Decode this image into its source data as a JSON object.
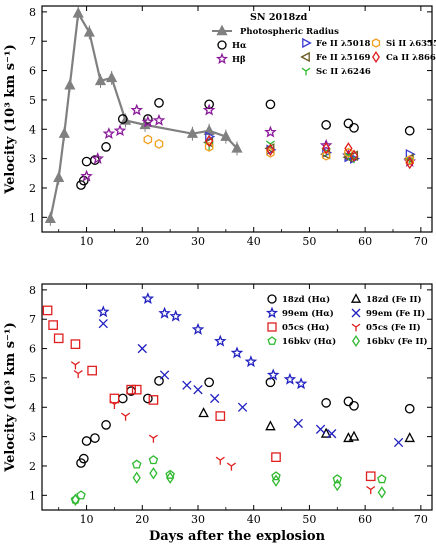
{
  "chart_data": [
    {
      "type": "scatter",
      "title": "SN 2018zd",
      "xlabel": "",
      "ylabel": "Velocity (10³ km s⁻¹)",
      "xlim": [
        2,
        72
      ],
      "ylim": [
        0.5,
        8.2
      ],
      "xticks": [
        "10",
        "20",
        "30",
        "40",
        "50",
        "60",
        "70"
      ],
      "yticks": [
        "1",
        "2",
        "3",
        "4",
        "5",
        "6",
        "7",
        "8"
      ],
      "legend_position": "top-right",
      "series": [
        {
          "name": "Photospheric Radius",
          "marker": "triangle-up",
          "color": "#808080",
          "line": true,
          "points": [
            [
              3.5,
              0.95
            ],
            [
              5,
              2.35
            ],
            [
              6,
              3.85
            ],
            [
              7,
              5.5
            ],
            [
              8.5,
              7.95
            ],
            [
              10.5,
              7.3
            ],
            [
              12.5,
              5.65
            ],
            [
              14.5,
              5.75
            ],
            [
              17,
              4.3
            ],
            [
              20.5,
              4.15
            ],
            [
              29,
              3.85
            ],
            [
              32,
              3.95
            ],
            [
              35,
              3.75
            ],
            [
              37,
              3.35
            ]
          ]
        },
        {
          "name": "Hα",
          "marker": "circle",
          "color": "#000000",
          "points": [
            [
              9,
              2.1
            ],
            [
              9.5,
              2.25
            ],
            [
              10,
              2.9
            ],
            [
              11.5,
              2.95
            ],
            [
              13.5,
              3.4
            ],
            [
              16.5,
              4.35
            ],
            [
              21,
              4.35
            ],
            [
              23,
              4.9
            ],
            [
              32,
              4.85
            ],
            [
              43,
              4.85
            ],
            [
              53,
              4.15
            ],
            [
              57,
              4.2
            ],
            [
              58,
              4.05
            ],
            [
              68,
              3.95
            ]
          ]
        },
        {
          "name": "Hβ",
          "marker": "star",
          "color": "#8b1a9b",
          "points": [
            [
              10,
              2.4
            ],
            [
              12,
              3.0
            ],
            [
              14,
              3.85
            ],
            [
              16,
              3.95
            ],
            [
              19,
              4.65
            ],
            [
              21,
              4.25
            ],
            [
              23,
              4.3
            ],
            [
              32,
              4.65
            ],
            [
              43,
              3.9
            ],
            [
              53,
              3.45
            ],
            [
              57,
              3.1
            ],
            [
              68,
              2.9
            ]
          ]
        },
        {
          "name": "Fe II λ5018",
          "marker": "triangle-right",
          "color": "#3b3bd0",
          "points": [
            [
              32,
              3.75
            ],
            [
              43,
              3.3
            ],
            [
              53,
              3.2
            ],
            [
              57,
              3.05
            ],
            [
              58,
              3.0
            ],
            [
              68,
              3.15
            ]
          ]
        },
        {
          "name": "Fe II λ5169",
          "marker": "triangle-left",
          "color": "#6b5a1f",
          "points": [
            [
              32,
              3.55
            ],
            [
              43,
              3.35
            ],
            [
              53,
              3.15
            ],
            [
              57,
              3.05
            ],
            [
              58,
              3.1
            ],
            [
              68,
              3.0
            ]
          ]
        },
        {
          "name": "Sc II λ6246",
          "marker": "tri",
          "color": "#2fb92f",
          "points": [
            [
              32,
              3.45
            ],
            [
              43,
              3.5
            ],
            [
              53,
              3.25
            ],
            [
              57,
              3.1
            ],
            [
              58,
              3.0
            ],
            [
              68,
              2.95
            ]
          ]
        },
        {
          "name": "Si II λ6355",
          "marker": "hexagon",
          "color": "#f0a020",
          "points": [
            [
              21,
              3.65
            ],
            [
              23,
              3.5
            ],
            [
              32,
              3.4
            ],
            [
              43,
              3.2
            ],
            [
              53,
              3.1
            ],
            [
              57,
              3.2
            ],
            [
              68,
              2.95
            ]
          ]
        },
        {
          "name": "Ca II λ8662",
          "marker": "diamond",
          "color": "#e01818",
          "points": [
            [
              32,
              3.6
            ],
            [
              43,
              3.3
            ],
            [
              53,
              3.35
            ],
            [
              57,
              3.35
            ],
            [
              58,
              3.1
            ],
            [
              68,
              2.85
            ]
          ]
        }
      ]
    },
    {
      "type": "scatter",
      "title": "",
      "xlabel": "Days after the explosion",
      "ylabel": "Velocity (10³ km s⁻¹)",
      "xlim": [
        2,
        72
      ],
      "ylim": [
        0.5,
        8.2
      ],
      "xticks": [
        "10",
        "20",
        "30",
        "40",
        "50",
        "60",
        "70"
      ],
      "yticks": [
        "1",
        "2",
        "3",
        "4",
        "5",
        "6",
        "7",
        "8"
      ],
      "legend_position": "top-right",
      "series": [
        {
          "name": "18zd (Hα)",
          "marker": "circle",
          "color": "#000000",
          "points": [
            [
              9,
              2.1
            ],
            [
              9.5,
              2.25
            ],
            [
              10,
              2.85
            ],
            [
              11.5,
              2.95
            ],
            [
              13.5,
              3.4
            ],
            [
              16.5,
              4.3
            ],
            [
              18,
              4.55
            ],
            [
              21,
              4.3
            ],
            [
              23,
              4.9
            ],
            [
              32,
              4.85
            ],
            [
              43,
              4.85
            ],
            [
              53,
              4.15
            ],
            [
              57,
              4.2
            ],
            [
              58,
              4.05
            ],
            [
              68,
              3.95
            ]
          ]
        },
        {
          "name": "99em (Hα)",
          "marker": "star",
          "color": "#2020c0",
          "points": [
            [
              13,
              7.25
            ],
            [
              21,
              7.7
            ],
            [
              24,
              7.2
            ],
            [
              26,
              7.1
            ],
            [
              30,
              6.65
            ],
            [
              34,
              6.25
            ],
            [
              37,
              5.85
            ],
            [
              39.5,
              5.55
            ],
            [
              43.5,
              5.1
            ],
            [
              46.5,
              4.95
            ],
            [
              48.5,
              4.8
            ]
          ]
        },
        {
          "name": "05cs (Hα)",
          "marker": "square",
          "color": "#e02020",
          "points": [
            [
              3,
              7.3
            ],
            [
              4,
              6.8
            ],
            [
              5,
              6.35
            ],
            [
              8,
              6.15
            ],
            [
              11,
              5.25
            ],
            [
              15,
              4.3
            ],
            [
              18,
              4.6
            ],
            [
              19,
              4.6
            ],
            [
              22,
              4.25
            ],
            [
              34,
              3.7
            ],
            [
              44,
              2.3
            ],
            [
              61,
              1.65
            ]
          ]
        },
        {
          "name": "16bkv (Hα)",
          "marker": "pentagon",
          "color": "#2fb92f",
          "points": [
            [
              8,
              0.85
            ],
            [
              9,
              1.0
            ],
            [
              19,
              2.05
            ],
            [
              22,
              2.2
            ],
            [
              25,
              1.7
            ],
            [
              44,
              1.65
            ],
            [
              55,
              1.55
            ],
            [
              63,
              1.55
            ]
          ]
        },
        {
          "name": "18zd (Fe II)",
          "marker": "triangle-up",
          "color": "#000000",
          "points": [
            [
              31,
              3.8
            ],
            [
              43,
              3.35
            ],
            [
              53,
              3.1
            ],
            [
              57,
              2.95
            ],
            [
              58,
              3.0
            ],
            [
              68,
              2.95
            ]
          ]
        },
        {
          "name": "99em (Fe II)",
          "marker": "x",
          "color": "#2020c0",
          "points": [
            [
              13,
              6.85
            ],
            [
              20,
              6.0
            ],
            [
              24,
              5.1
            ],
            [
              28,
              4.75
            ],
            [
              30,
              4.6
            ],
            [
              33,
              4.3
            ],
            [
              38,
              4.0
            ],
            [
              48,
              3.45
            ],
            [
              52,
              3.25
            ],
            [
              54,
              3.1
            ],
            [
              66,
              2.8
            ]
          ]
        },
        {
          "name": "05cs (Fe II)",
          "marker": "tri",
          "color": "#e02020",
          "points": [
            [
              8,
              5.45
            ],
            [
              8.5,
              5.15
            ],
            [
              15,
              4.1
            ],
            [
              17,
              3.7
            ],
            [
              22,
              2.95
            ],
            [
              34,
              2.2
            ],
            [
              36,
              2.0
            ],
            [
              61,
              1.2
            ]
          ]
        },
        {
          "name": "16bkv (Fe II)",
          "marker": "diamond",
          "color": "#2fb92f",
          "points": [
            [
              8,
              0.85
            ],
            [
              19,
              1.6
            ],
            [
              22,
              1.75
            ],
            [
              25,
              1.6
            ],
            [
              44,
              1.5
            ],
            [
              55,
              1.35
            ],
            [
              63,
              1.1
            ]
          ]
        }
      ]
    }
  ]
}
